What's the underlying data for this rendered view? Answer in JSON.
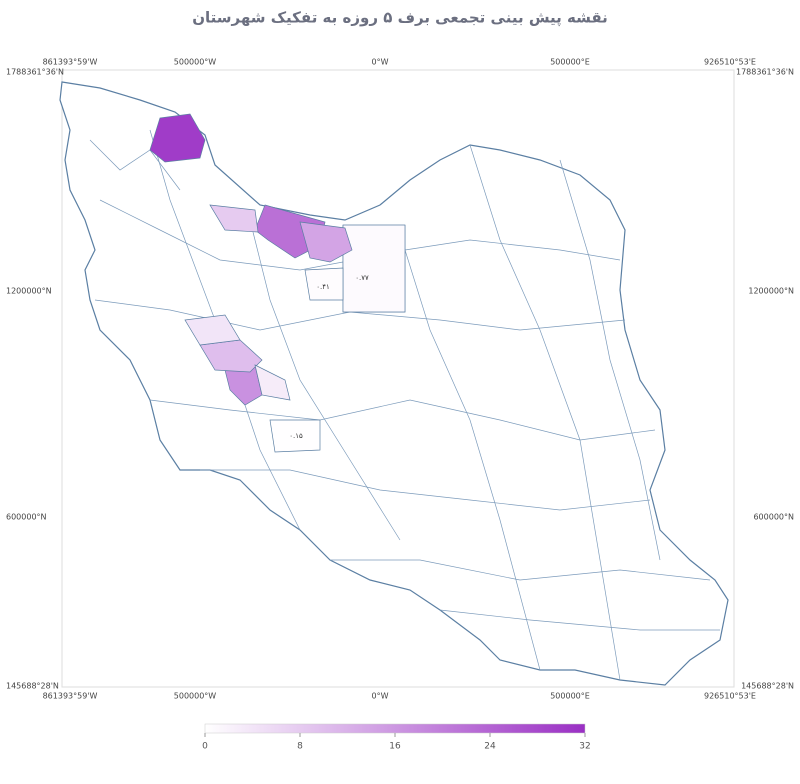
{
  "title": "نقشه پیش بینی تجمعی برف ۵ روزه به تفکیک شهرستان",
  "axes": {
    "x": [
      "861393°59'W",
      "500000°W",
      "0°W",
      "500000°E",
      "926510°53'E"
    ],
    "y": [
      "1788361°36'N",
      "1200000°N",
      "600000°N",
      "145688°28'N"
    ]
  },
  "colorbar": {
    "range": [
      0,
      32
    ],
    "ticks": [
      0,
      8,
      16,
      24,
      32
    ],
    "colors": [
      "#ffffff",
      "#9a2fc4"
    ]
  },
  "regions": [
    {
      "value": 0.77,
      "label": "۰.۷۷"
    },
    {
      "value": 0.41,
      "label": "۰.۴۱"
    },
    {
      "value": 0.15,
      "label": "۰.۱۵"
    },
    {
      "value": 30
    },
    {
      "value": 22
    },
    {
      "value": 14
    },
    {
      "value": 8
    },
    {
      "value": 17
    },
    {
      "value": 10
    },
    {
      "value": 4
    },
    {
      "value": 3
    }
  ]
}
